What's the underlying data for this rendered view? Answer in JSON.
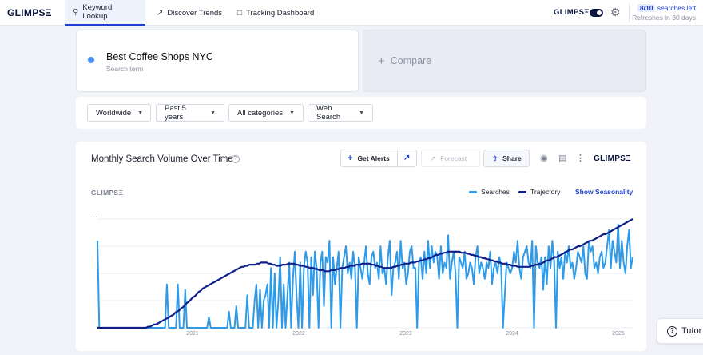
{
  "brand": {
    "logo": "GLIMPSΞ"
  },
  "nav": {
    "tabs": [
      {
        "label": "Keyword Lookup",
        "icon": "search-icon",
        "active": true
      },
      {
        "label": "Discover Trends",
        "icon": "trend-icon",
        "active": false
      },
      {
        "label": "Tracking Dashboard",
        "icon": "dashboard-icon",
        "active": false
      }
    ],
    "toggle_on": true,
    "quota": {
      "badge": "8/10",
      "label": "searches left",
      "sub": "Refreshes in 30 days"
    }
  },
  "search": {
    "term": "Best Coffee Shops NYC",
    "term_sub": "Search term",
    "dot_color": "#4a8ef0",
    "compare_label": "Compare"
  },
  "filters": [
    {
      "label": "Worldwide"
    },
    {
      "label": "Past 5 years"
    },
    {
      "label": "All categories"
    },
    {
      "label": "Web Search"
    }
  ],
  "chart_card": {
    "title": "Monthly Search Volume Over Time",
    "get_alerts": "Get Alerts",
    "forecast": "Forecast",
    "share": "Share",
    "show_seasonality": "Show Seasonality",
    "legend": [
      {
        "name": "Searches",
        "color": "#2f9be8"
      },
      {
        "name": "Trajectory",
        "color": "#0f1f8a"
      }
    ],
    "y_marker": "..."
  },
  "chart_data": {
    "type": "line",
    "x_ticks": [
      "2021",
      "2022",
      "2023",
      "2024",
      "2025"
    ],
    "ylim": [
      0,
      100
    ],
    "grid": true,
    "legend_placement": "top-right",
    "series": [
      {
        "name": "Searches",
        "color": "#2f9be8",
        "values": [
          80,
          0,
          0,
          0,
          0,
          0,
          0,
          0,
          0,
          0,
          0,
          0,
          0,
          0,
          0,
          0,
          0,
          0,
          0,
          0,
          0,
          0,
          0,
          0,
          0,
          0,
          0,
          0,
          0,
          0,
          0,
          0,
          0,
          0,
          0,
          0,
          0,
          0,
          40,
          0,
          0,
          0,
          0,
          0,
          40,
          0,
          0,
          0,
          35,
          0,
          0,
          0,
          0,
          0,
          0,
          0,
          0,
          0,
          0,
          0,
          0,
          10,
          0,
          0,
          0,
          0,
          0,
          0,
          0,
          0,
          0,
          0,
          15,
          0,
          0,
          0,
          20,
          0,
          0,
          0,
          0,
          0,
          30,
          0,
          0,
          0,
          25,
          40,
          0,
          35,
          0,
          25,
          30,
          40,
          0,
          55,
          0,
          50,
          0,
          25,
          65,
          0,
          40,
          0,
          30,
          60,
          0,
          45,
          70,
          30,
          0,
          60,
          0,
          55,
          70,
          60,
          0,
          65,
          30,
          70,
          55,
          0,
          60,
          70,
          20,
          65,
          60,
          80,
          0,
          65,
          40,
          55,
          70,
          0,
          55,
          65,
          75,
          50,
          60,
          45,
          70,
          55,
          0,
          65,
          55,
          45,
          60,
          75,
          50,
          40,
          65,
          70,
          55,
          60,
          45,
          75,
          50,
          55,
          40,
          65,
          80,
          30,
          55,
          60,
          70,
          45,
          80,
          55,
          60,
          40,
          50,
          70,
          75,
          55,
          55,
          0,
          60,
          65,
          45,
          70,
          50,
          80,
          55,
          75,
          60,
          70,
          65,
          45,
          75,
          50,
          60,
          55,
          85,
          45,
          60,
          70,
          50,
          0,
          65,
          60,
          55,
          70,
          45,
          50,
          60,
          55,
          40,
          65,
          75,
          50,
          60,
          55,
          45,
          60,
          55,
          70,
          40,
          55,
          60,
          50,
          65,
          55,
          0,
          30,
          60,
          55,
          50,
          55,
          70,
          60,
          80,
          55,
          45,
          65,
          70,
          75,
          60,
          55,
          80,
          0,
          75,
          60,
          55,
          65,
          35,
          65,
          40,
          75,
          55,
          80,
          60,
          0,
          70,
          55,
          65,
          45,
          70,
          60,
          75,
          55,
          60,
          45,
          55,
          70,
          65,
          60,
          75,
          50,
          45,
          80,
          70,
          75,
          55,
          60,
          50,
          65,
          70,
          55,
          60,
          75,
          90,
          55,
          80,
          70,
          60,
          95,
          55,
          80,
          60,
          50,
          75,
          90,
          55,
          65
        ],
        "values_note": "monthly index, estimated"
      },
      {
        "name": "Trajectory",
        "color": "#0f1f8a",
        "values": [
          0,
          0,
          0,
          0,
          0,
          0,
          0,
          0,
          0,
          0,
          0,
          0,
          0,
          0,
          0,
          0,
          0,
          0,
          0,
          0,
          0,
          0,
          0,
          0,
          0,
          0,
          1,
          1,
          2,
          3,
          3,
          4,
          5,
          6,
          7,
          8,
          9,
          10,
          11,
          12,
          14,
          15,
          16,
          18,
          19,
          21,
          23,
          24,
          26,
          28,
          29,
          31,
          33,
          34,
          36,
          37,
          38,
          39,
          40,
          41,
          42,
          43,
          44,
          45,
          46,
          47,
          48,
          49,
          50,
          51,
          52,
          53,
          54,
          55,
          56,
          56,
          57,
          57,
          58,
          58,
          58,
          58,
          59,
          59,
          60,
          60,
          60,
          60,
          59,
          59,
          58,
          58,
          57,
          57,
          57,
          58,
          58,
          58,
          59,
          59,
          59,
          59,
          58,
          58,
          57,
          57,
          57,
          56,
          56,
          55,
          55,
          55,
          54,
          54,
          53,
          53,
          53,
          52,
          52,
          52,
          53,
          53,
          53,
          54,
          54,
          55,
          55,
          55,
          56,
          56,
          57,
          57,
          57,
          58,
          58,
          58,
          59,
          59,
          59,
          59,
          59,
          58,
          58,
          57,
          57,
          56,
          56,
          55,
          55,
          55,
          55,
          55,
          56,
          56,
          57,
          57,
          58,
          58,
          59,
          59,
          59,
          60,
          60,
          60,
          61,
          61,
          62,
          62,
          63,
          63,
          64,
          64,
          65,
          66,
          67,
          67,
          68,
          68,
          69,
          69,
          70,
          70,
          70,
          70,
          70,
          70,
          70,
          69,
          69,
          69,
          68,
          68,
          67,
          67,
          66,
          66,
          65,
          65,
          64,
          64,
          63,
          63,
          62,
          62,
          61,
          61,
          60,
          60,
          59,
          59,
          59,
          58,
          58,
          57,
          57,
          57,
          56,
          56,
          56,
          56,
          56,
          56,
          56,
          57,
          57,
          58,
          58,
          59,
          59,
          60,
          61,
          62,
          62,
          63,
          64,
          65,
          65,
          66,
          67,
          68,
          69,
          70,
          71,
          72,
          72,
          73,
          74,
          75,
          75,
          76,
          77,
          78,
          79,
          80,
          80,
          81,
          82,
          83,
          84,
          85,
          86,
          86,
          87,
          88,
          89,
          90,
          91,
          92,
          93,
          94,
          95,
          96,
          97,
          98,
          99,
          100
        ]
      }
    ]
  },
  "help": {
    "tutor_label": "Tutor"
  }
}
